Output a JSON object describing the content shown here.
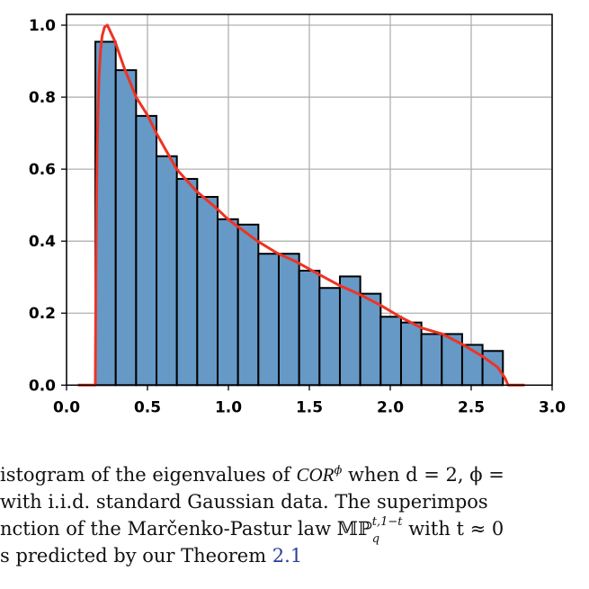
{
  "chart_data": {
    "type": "bar",
    "title": "",
    "xlabel": "",
    "ylabel": "",
    "xlim": [
      0,
      3.0
    ],
    "ylim": [
      0,
      1.03
    ],
    "xticks": [
      "0.0",
      "0.5",
      "1.0",
      "1.5",
      "2.0",
      "2.5",
      "3.0"
    ],
    "yticks": [
      "0.0",
      "0.2",
      "0.4",
      "0.6",
      "0.8",
      "1.0"
    ],
    "grid": true,
    "bar_color": "#6699c6",
    "bar_edge_color": "#000000",
    "curve_color": "#ee3324",
    "histogram": {
      "bin_start": 0.178,
      "bin_width": 0.1259,
      "values": [
        0.954,
        0.875,
        0.748,
        0.636,
        0.573,
        0.523,
        0.461,
        0.446,
        0.365,
        0.365,
        0.318,
        0.27,
        0.302,
        0.254,
        0.19,
        0.174,
        0.142,
        0.142,
        0.112,
        0.095
      ]
    },
    "density_curve": {
      "x": [
        0.07,
        0.178,
        0.181,
        0.185,
        0.19,
        0.2,
        0.21,
        0.22,
        0.235,
        0.252,
        0.3,
        0.357,
        0.43,
        0.5,
        0.555,
        0.68,
        0.8,
        0.93,
        1.0,
        1.18,
        1.3,
        1.422,
        1.563,
        1.69,
        1.815,
        1.94,
        2.067,
        2.194,
        2.32,
        2.446,
        2.57,
        2.663,
        2.709,
        2.728,
        2.83
      ],
      "y": [
        0,
        0,
        0.3,
        0.5,
        0.68,
        0.85,
        0.93,
        0.97,
        0.995,
        1.0,
        0.954,
        0.88,
        0.8,
        0.75,
        0.7,
        0.6,
        0.54,
        0.49,
        0.46,
        0.4,
        0.367,
        0.342,
        0.307,
        0.276,
        0.251,
        0.222,
        0.188,
        0.159,
        0.1425,
        0.113,
        0.08,
        0.05,
        0.02,
        0,
        0
      ]
    }
  },
  "caption": {
    "line1": {
      "text": "istogram of the eigenvalues of ",
      "math": "COR",
      "sup": "ϕ",
      "rest": " when d = 2, ϕ ="
    },
    "line2": "with i.i.d. standard Gaussian data.  The superimpos",
    "line3": {
      "text": "nction of the Marčenko-Pastur law ",
      "math": "𝕄ℙ",
      "sup": "t,1−t",
      "sub": "q",
      "rest": " with t ≈ 0"
    },
    "line4": {
      "text": "s predicted by our Theorem ",
      "link": "2.1"
    }
  }
}
